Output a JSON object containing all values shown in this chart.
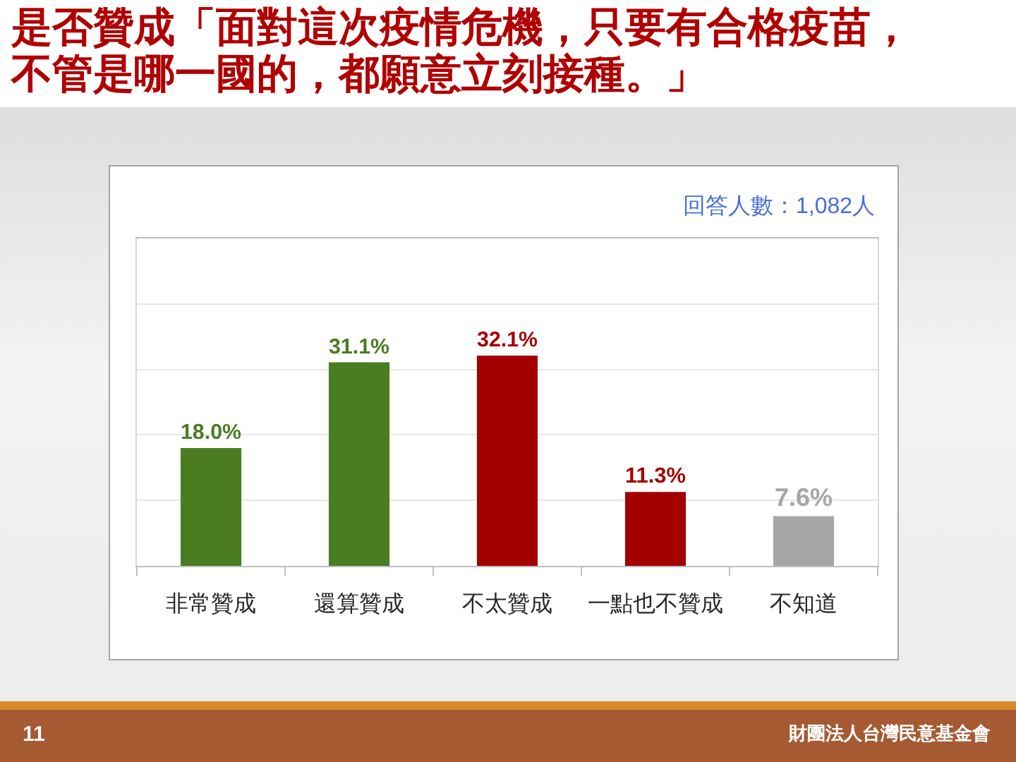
{
  "chart_data": {
    "type": "bar",
    "title": "是否贊成「面對這次疫情危機，只要有合格疫苗，不管是哪一國的，都願意立刻接種。」",
    "categories": [
      "非常贊成",
      "還算贊成",
      "不太贊成",
      "一點也不贊成",
      "不知道"
    ],
    "values": [
      18.0,
      31.1,
      32.1,
      11.3,
      7.6
    ],
    "colors": [
      "#4a7d22",
      "#4a7d22",
      "#a30000",
      "#a30000",
      "#a6a6a6"
    ],
    "value_labels": [
      "18.0%",
      "31.1%",
      "32.1%",
      "11.3%",
      "7.6%"
    ],
    "ylim": [
      0,
      50
    ],
    "yticks": [
      {
        "value": 0,
        "label": null
      },
      {
        "value": 10,
        "label": null
      },
      {
        "value": 20,
        "label": null
      },
      {
        "value": 30,
        "label": null
      },
      {
        "value": 40,
        "label": null
      },
      {
        "value": 50,
        "label": null
      }
    ],
    "grid": "y",
    "tick_labels": "x",
    "annotations": [
      "回答人數：1,082人",
      "11",
      "財團法人台灣民意基金會"
    ]
  }
}
